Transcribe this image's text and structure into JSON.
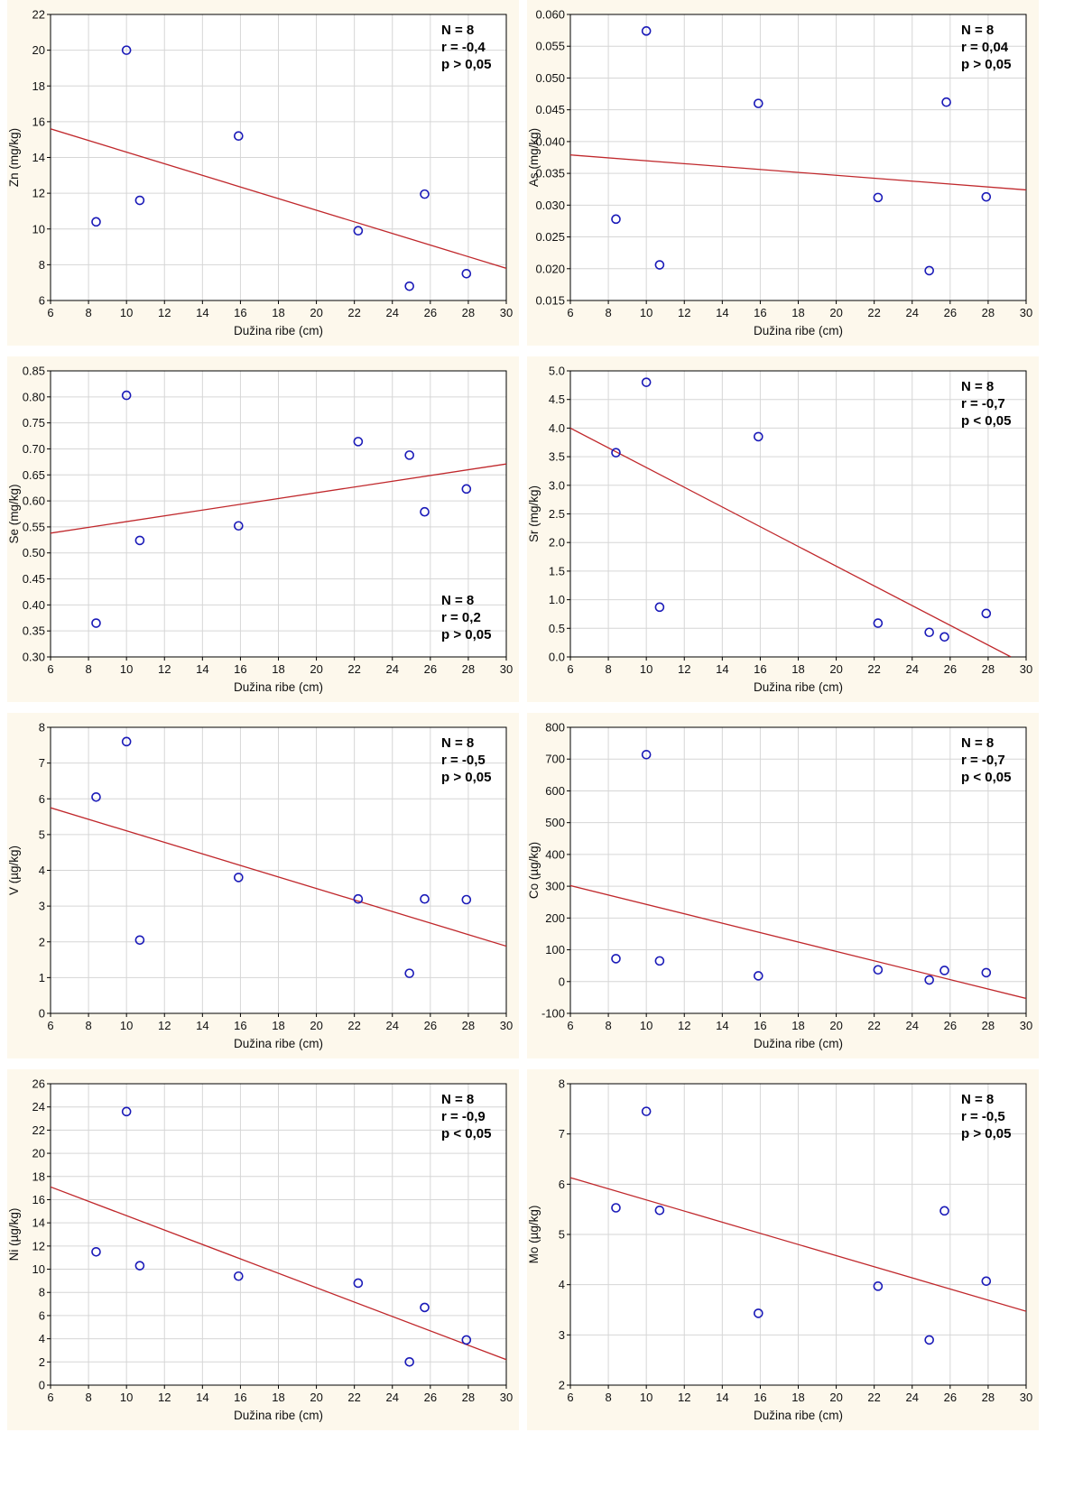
{
  "chart_data": [
    {
      "type": "scatter",
      "xlabel": "Dužina ribe (cm)",
      "ylabel": "Zn  (mg/kg)",
      "xlim": [
        6,
        30
      ],
      "ylim": [
        6,
        22
      ],
      "xticks": [
        "6",
        "8",
        "10",
        "12",
        "14",
        "16",
        "18",
        "20",
        "22",
        "24",
        "26",
        "28",
        "30"
      ],
      "yticks": [
        "6",
        "8",
        "10",
        "12",
        "14",
        "16",
        "18",
        "20",
        "22"
      ],
      "grid": true,
      "points": [
        [
          8.4,
          10.4
        ],
        [
          10.0,
          20.0
        ],
        [
          10.7,
          11.6
        ],
        [
          15.9,
          15.2
        ],
        [
          22.2,
          9.9
        ],
        [
          24.9,
          6.8
        ],
        [
          25.7,
          11.95
        ],
        [
          27.9,
          7.5
        ]
      ],
      "trendline": [
        [
          6,
          15.6
        ],
        [
          30,
          7.8
        ]
      ],
      "stats": [
        "N = 8",
        "r = -0,4",
        "p > 0,05"
      ],
      "stats_position": "top-right",
      "point_color": "#1a1ab8",
      "line_color": "#c0282c"
    },
    {
      "type": "scatter",
      "xlabel": "Dužina ribe (cm)",
      "ylabel": "As  (mg/kg)",
      "xlim": [
        6,
        30
      ],
      "ylim": [
        0.015,
        0.06
      ],
      "xticks": [
        "6",
        "8",
        "10",
        "12",
        "14",
        "16",
        "18",
        "20",
        "22",
        "24",
        "26",
        "28",
        "30"
      ],
      "yticks": [
        "0.015",
        "0.020",
        "0.025",
        "0.030",
        "0.035",
        "0.040",
        "0.045",
        "0.050",
        "0.055",
        "0.060"
      ],
      "grid": true,
      "points": [
        [
          8.4,
          0.0278
        ],
        [
          10.0,
          0.0574
        ],
        [
          10.7,
          0.0206
        ],
        [
          15.9,
          0.046
        ],
        [
          22.2,
          0.0312
        ],
        [
          24.9,
          0.0197
        ],
        [
          25.8,
          0.0462
        ],
        [
          27.9,
          0.0313
        ]
      ],
      "trendline": [
        [
          6,
          0.0379
        ],
        [
          30,
          0.0324
        ]
      ],
      "stats": [
        "N = 8",
        "r = 0,04",
        "p > 0,05"
      ],
      "stats_position": "top-right",
      "point_color": "#1a1ab8",
      "line_color": "#c0282c"
    },
    {
      "type": "scatter",
      "xlabel": "Dužina ribe (cm)",
      "ylabel": "Se  (mg/kg)",
      "xlim": [
        6,
        30
      ],
      "ylim": [
        0.3,
        0.85
      ],
      "xticks": [
        "6",
        "8",
        "10",
        "12",
        "14",
        "16",
        "18",
        "20",
        "22",
        "24",
        "26",
        "28",
        "30"
      ],
      "yticks": [
        "0.30",
        "0.35",
        "0.40",
        "0.45",
        "0.50",
        "0.55",
        "0.60",
        "0.65",
        "0.70",
        "0.75",
        "0.80",
        "0.85"
      ],
      "grid": true,
      "points": [
        [
          8.4,
          0.365
        ],
        [
          10.0,
          0.803
        ],
        [
          10.7,
          0.524
        ],
        [
          15.9,
          0.552
        ],
        [
          22.2,
          0.714
        ],
        [
          24.9,
          0.688
        ],
        [
          25.7,
          0.579
        ],
        [
          27.9,
          0.623
        ]
      ],
      "trendline": [
        [
          6,
          0.538
        ],
        [
          30,
          0.671
        ]
      ],
      "stats": [
        "N = 8",
        "r = 0,2",
        "p > 0,05"
      ],
      "stats_position": "bottom-right",
      "point_color": "#1a1ab8",
      "line_color": "#c0282c"
    },
    {
      "type": "scatter",
      "xlabel": "Dužina ribe (cm)",
      "ylabel": "Sr  (mg/kg)",
      "xlim": [
        6,
        30
      ],
      "ylim": [
        0.0,
        5.0
      ],
      "xticks": [
        "6",
        "8",
        "10",
        "12",
        "14",
        "16",
        "18",
        "20",
        "22",
        "24",
        "26",
        "28",
        "30"
      ],
      "yticks": [
        "0.0",
        "0.5",
        "1.0",
        "1.5",
        "2.0",
        "2.5",
        "3.0",
        "3.5",
        "4.0",
        "4.5",
        "5.0"
      ],
      "grid": true,
      "points": [
        [
          8.4,
          3.57
        ],
        [
          10.0,
          4.8
        ],
        [
          10.7,
          0.87
        ],
        [
          15.9,
          3.85
        ],
        [
          22.2,
          0.59
        ],
        [
          24.9,
          0.43
        ],
        [
          25.7,
          0.35
        ],
        [
          27.9,
          0.76
        ]
      ],
      "trendline": [
        [
          6,
          4.0
        ],
        [
          29.2,
          0.0
        ]
      ],
      "stats": [
        "N = 8",
        "r = -0,7",
        "p < 0,05"
      ],
      "stats_position": "top-right",
      "point_color": "#1a1ab8",
      "line_color": "#c0282c"
    },
    {
      "type": "scatter",
      "xlabel": "Dužina ribe (cm)",
      "ylabel": "V (µg/kg)",
      "xlim": [
        6,
        30
      ],
      "ylim": [
        0,
        8
      ],
      "xticks": [
        "6",
        "8",
        "10",
        "12",
        "14",
        "16",
        "18",
        "20",
        "22",
        "24",
        "26",
        "28",
        "30"
      ],
      "yticks": [
        "0",
        "1",
        "2",
        "3",
        "4",
        "5",
        "6",
        "7",
        "8"
      ],
      "grid": true,
      "points": [
        [
          8.4,
          6.05
        ],
        [
          10.0,
          7.6
        ],
        [
          10.7,
          2.05
        ],
        [
          15.9,
          3.8
        ],
        [
          22.2,
          3.2
        ],
        [
          24.9,
          1.12
        ],
        [
          25.7,
          3.2
        ],
        [
          27.9,
          3.18
        ]
      ],
      "trendline": [
        [
          6,
          5.75
        ],
        [
          30,
          1.88
        ]
      ],
      "stats": [
        "N = 8",
        "r = -0,5",
        "p > 0,05"
      ],
      "stats_position": "top-right",
      "point_color": "#1a1ab8",
      "line_color": "#c0282c"
    },
    {
      "type": "scatter",
      "xlabel": "Dužina ribe (cm)",
      "ylabel": "Co (µg/kg)",
      "xlim": [
        6,
        30
      ],
      "ylim": [
        -100,
        800
      ],
      "xticks": [
        "6",
        "8",
        "10",
        "12",
        "14",
        "16",
        "18",
        "20",
        "22",
        "24",
        "26",
        "28",
        "30"
      ],
      "yticks": [
        "-100",
        "0",
        "100",
        "200",
        "300",
        "400",
        "500",
        "600",
        "700",
        "800"
      ],
      "grid": true,
      "points": [
        [
          8.4,
          72
        ],
        [
          10.0,
          714
        ],
        [
          10.7,
          65
        ],
        [
          15.9,
          18
        ],
        [
          22.2,
          37
        ],
        [
          24.9,
          5
        ],
        [
          25.7,
          35
        ],
        [
          27.9,
          28
        ]
      ],
      "trendline": [
        [
          6,
          302
        ],
        [
          30,
          -53
        ]
      ],
      "stats": [
        "N = 8",
        "r = -0,7",
        "p < 0,05"
      ],
      "stats_position": "top-right",
      "point_color": "#1a1ab8",
      "line_color": "#c0282c"
    },
    {
      "type": "scatter",
      "xlabel": "Dužina ribe (cm)",
      "ylabel": "Ni (µg/kg)",
      "xlim": [
        6,
        30
      ],
      "ylim": [
        0,
        26
      ],
      "xticks": [
        "6",
        "8",
        "10",
        "12",
        "14",
        "16",
        "18",
        "20",
        "22",
        "24",
        "26",
        "28",
        "30"
      ],
      "yticks": [
        "0",
        "2",
        "4",
        "6",
        "8",
        "10",
        "12",
        "14",
        "16",
        "18",
        "20",
        "22",
        "24",
        "26"
      ],
      "grid": true,
      "points": [
        [
          8.4,
          11.5
        ],
        [
          10.0,
          23.6
        ],
        [
          10.7,
          10.3
        ],
        [
          15.9,
          9.4
        ],
        [
          22.2,
          8.8
        ],
        [
          24.9,
          2.0
        ],
        [
          25.7,
          6.7
        ],
        [
          27.9,
          3.9
        ]
      ],
      "trendline": [
        [
          6,
          17.1
        ],
        [
          30,
          2.2
        ]
      ],
      "stats": [
        "N = 8",
        "r = -0,9",
        "p < 0,05"
      ],
      "stats_position": "top-right",
      "point_color": "#1a1ab8",
      "line_color": "#c0282c"
    },
    {
      "type": "scatter",
      "xlabel": "Dužina ribe (cm)",
      "ylabel": "Mo (µg/kg)",
      "xlim": [
        6,
        30
      ],
      "ylim": [
        2,
        8
      ],
      "xticks": [
        "6",
        "8",
        "10",
        "12",
        "14",
        "16",
        "18",
        "20",
        "22",
        "24",
        "26",
        "28",
        "30"
      ],
      "yticks": [
        "2",
        "3",
        "4",
        "5",
        "6",
        "7",
        "8"
      ],
      "grid": true,
      "points": [
        [
          8.4,
          5.53
        ],
        [
          10.0,
          7.45
        ],
        [
          10.7,
          5.48
        ],
        [
          15.9,
          3.43
        ],
        [
          22.2,
          3.97
        ],
        [
          24.9,
          2.9
        ],
        [
          25.7,
          5.47
        ],
        [
          27.9,
          4.07
        ]
      ],
      "trendline": [
        [
          6,
          6.13
        ],
        [
          30,
          3.47
        ]
      ],
      "stats": [
        "N = 8",
        "r = -0,5",
        "p > 0,05"
      ],
      "stats_position": "top-right",
      "point_color": "#1a1ab8",
      "line_color": "#c0282c"
    }
  ]
}
